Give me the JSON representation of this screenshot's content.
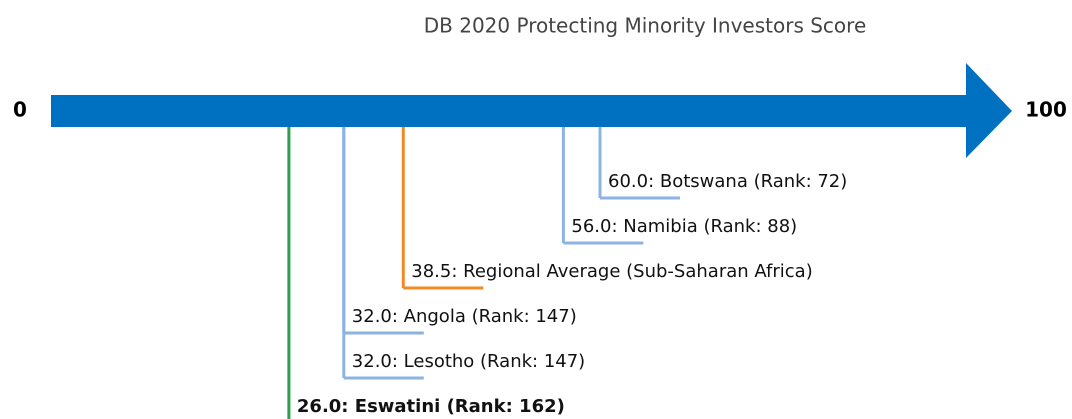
{
  "chart_data": {
    "type": "number-line",
    "title": "DB 2020 Protecting Minority Investors Score",
    "xlim": [
      0,
      100
    ],
    "xticks": [
      0,
      100
    ],
    "axis_color": "#0070c0",
    "highlight": 5,
    "values": [
      60.0,
      56.0,
      38.5,
      32.0,
      32.0,
      26.0
    ],
    "value_labels": [
      "60.0: Botswana (Rank: 72)",
      "56.0: Namibia (Rank: 88)",
      "38.5: Regional Average (Sub-Saharan Africa)",
      "32.0: Angola (Rank: 147)",
      "32.0: Lesotho (Rank: 147)",
      "26.0: Eswatini (Rank: 162)"
    ],
    "colors": [
      "#8db3e2",
      "#8db3e2",
      "#f08a24",
      "#8db3e2",
      "#8db3e2",
      "#2e9e4f"
    ]
  }
}
